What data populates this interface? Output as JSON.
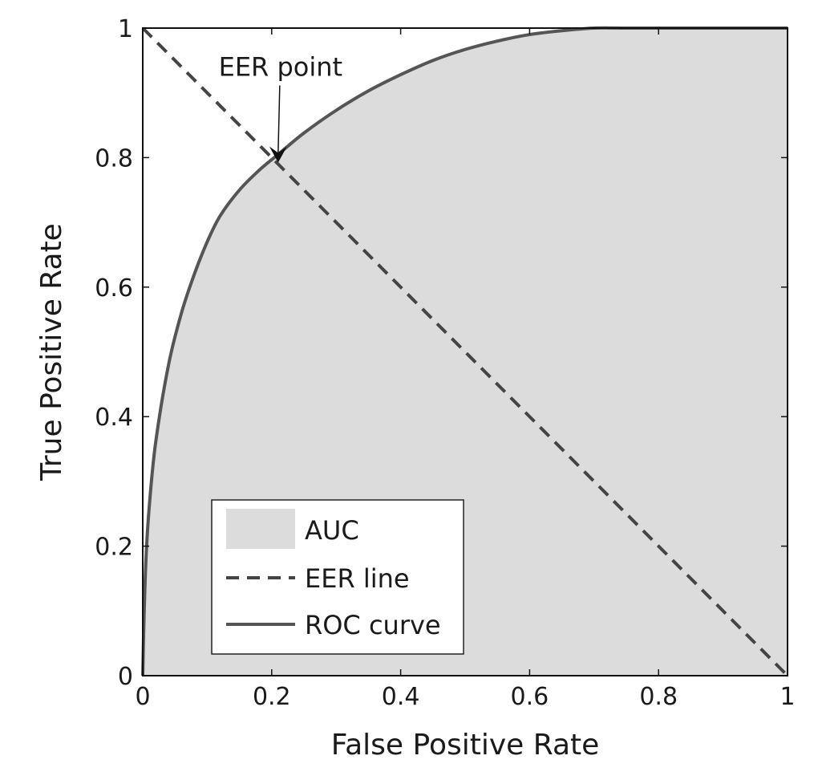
{
  "chart_data": {
    "type": "area",
    "title": "",
    "xlabel": "False Positive Rate",
    "ylabel": "True Positive Rate",
    "xlim": [
      0,
      1
    ],
    "ylim": [
      0,
      1
    ],
    "grid": false,
    "x_ticks": [
      0,
      0.2,
      0.4,
      0.6,
      0.8,
      1
    ],
    "y_ticks": [
      0,
      0.2,
      0.4,
      0.6,
      0.8,
      1
    ],
    "x_tick_labels": [
      "0",
      "0.2",
      "0.4",
      "0.6",
      "0.8",
      "1"
    ],
    "y_tick_labels": [
      "0",
      "0.2",
      "0.4",
      "0.6",
      "0.8",
      "1"
    ],
    "series": [
      {
        "name": "ROC curve",
        "kind": "line",
        "style": "solid",
        "color": "#555555",
        "x": [
          0,
          0.002,
          0.005,
          0.01,
          0.02,
          0.04,
          0.06,
          0.08,
          0.1,
          0.12,
          0.15,
          0.18,
          0.21,
          0.25,
          0.3,
          0.35,
          0.4,
          0.45,
          0.5,
          0.55,
          0.6,
          0.65,
          0.7,
          0.75,
          0.8,
          0.9,
          1
        ],
        "y": [
          0,
          0.09,
          0.18,
          0.26,
          0.36,
          0.48,
          0.56,
          0.62,
          0.67,
          0.71,
          0.75,
          0.78,
          0.805,
          0.838,
          0.873,
          0.903,
          0.928,
          0.95,
          0.967,
          0.98,
          0.99,
          0.996,
          1.0,
          1.0,
          1.0,
          1.0,
          1.0
        ]
      },
      {
        "name": "EER line",
        "kind": "line",
        "style": "dashed",
        "color": "#444444",
        "x": [
          0,
          1
        ],
        "y": [
          1,
          0
        ]
      },
      {
        "name": "AUC",
        "kind": "area",
        "color": "#dcdcdc",
        "under": "ROC curve"
      }
    ],
    "legend": {
      "placement": "bottom-left",
      "entries": [
        "AUC",
        "EER line",
        "ROC curve"
      ]
    },
    "annotations": [
      {
        "text": "EER point",
        "x": 0.21,
        "y": 0.79,
        "text_x": 0.21,
        "text_y": 0.93
      }
    ]
  }
}
